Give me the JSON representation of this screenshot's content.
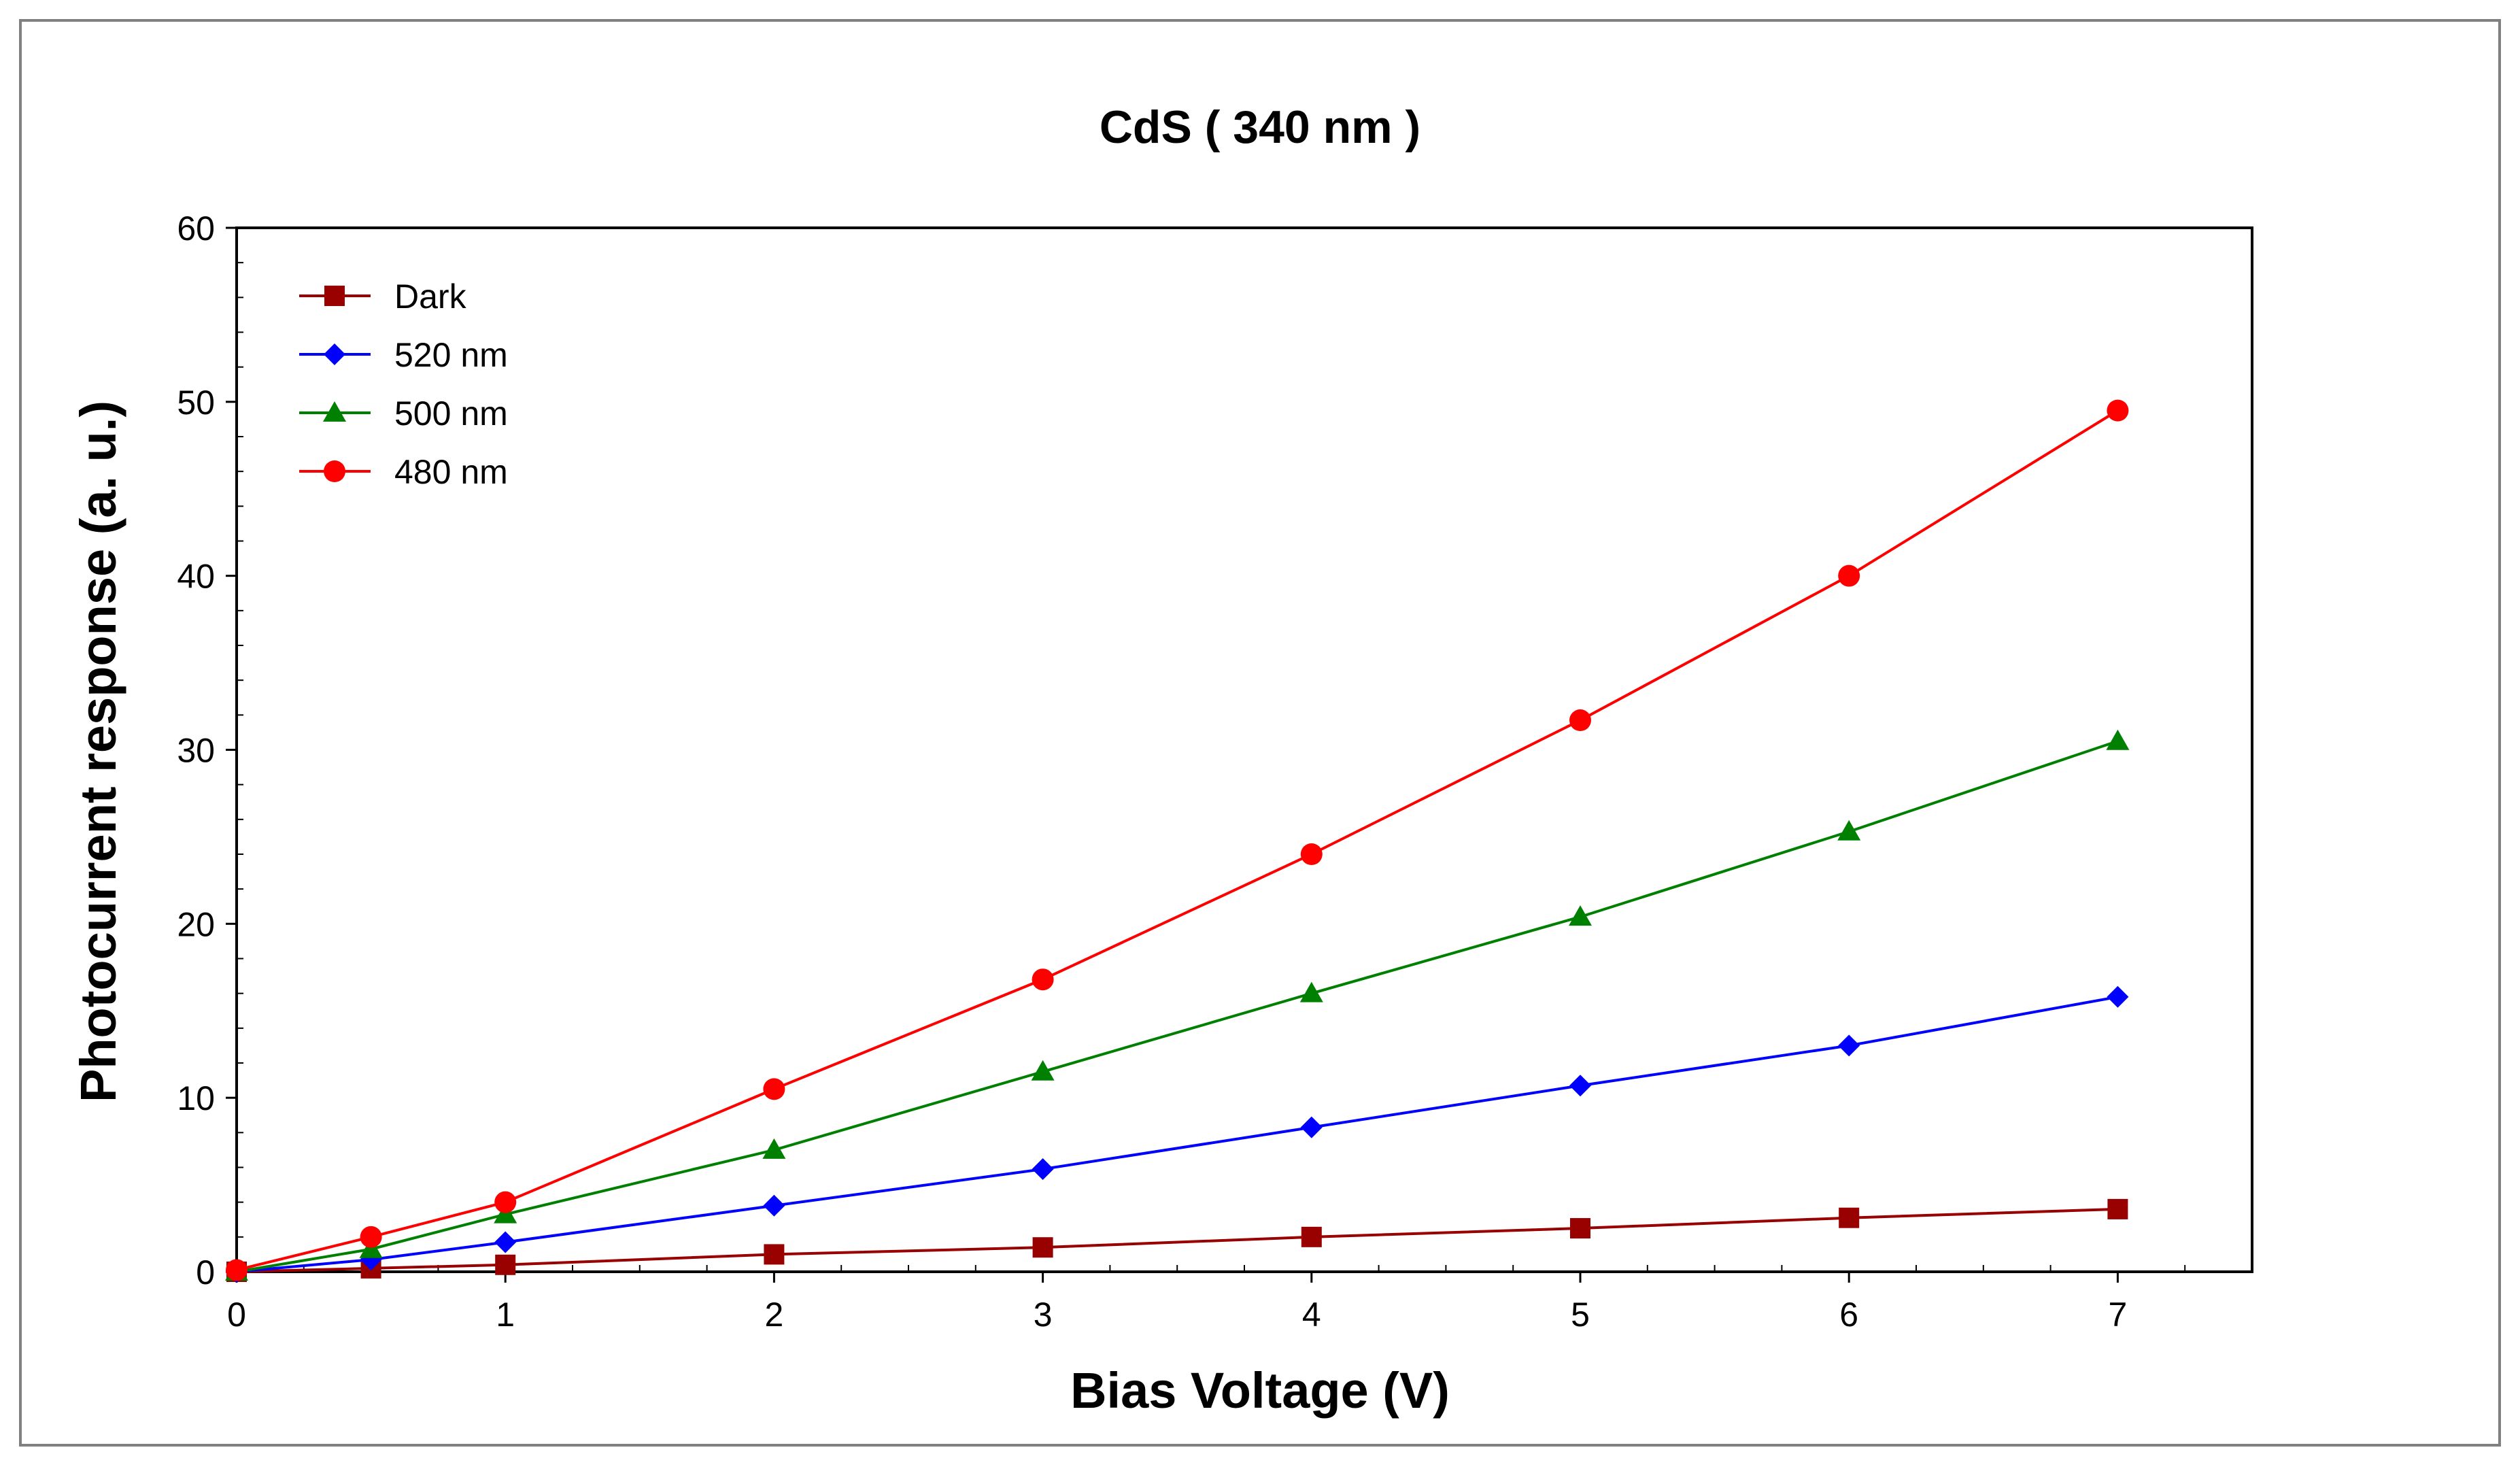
{
  "chart_data": {
    "type": "line",
    "title": "CdS ( 340 nm )",
    "xlabel": "Bias Voltage  (V)",
    "ylabel": "Photocurrent  response (a. u.)",
    "xlim": [
      0,
      7.5
    ],
    "ylim": [
      0,
      60
    ],
    "x_ticks": [
      "0",
      "1",
      "2",
      "3",
      "4",
      "5",
      "6",
      "7"
    ],
    "y_ticks": [
      "0",
      "10",
      "20",
      "30",
      "40",
      "50",
      "60"
    ],
    "grid": false,
    "legend_position": "top-left",
    "series": [
      {
        "name": "Dark",
        "color": "#990000",
        "marker": "square",
        "x": [
          0,
          0.5,
          1,
          2,
          3,
          4,
          5,
          6,
          7
        ],
        "y": [
          0,
          0.2,
          0.4,
          1.0,
          1.4,
          2.0,
          2.5,
          3.1,
          3.6
        ]
      },
      {
        "name": "520 nm",
        "color": "#0000ff",
        "marker": "diamond",
        "x": [
          0,
          0.5,
          1,
          2,
          3,
          4,
          5,
          6,
          7
        ],
        "y": [
          0,
          0.7,
          1.7,
          3.8,
          5.9,
          8.3,
          10.7,
          13.0,
          15.8
        ]
      },
      {
        "name": "500 nm",
        "color": "#008000",
        "marker": "triangle",
        "x": [
          0,
          0.5,
          1,
          2,
          3,
          4,
          5,
          6,
          7
        ],
        "y": [
          0,
          1.3,
          3.3,
          7.0,
          11.5,
          16.0,
          20.4,
          25.3,
          30.5
        ]
      },
      {
        "name": "480 nm",
        "color": "#ff0000",
        "marker": "circle",
        "x": [
          0,
          0.5,
          1,
          2,
          3,
          4,
          5,
          6,
          7
        ],
        "y": [
          0.1,
          2.0,
          4.0,
          10.5,
          16.8,
          24.0,
          31.7,
          40.0,
          49.5
        ]
      }
    ]
  }
}
